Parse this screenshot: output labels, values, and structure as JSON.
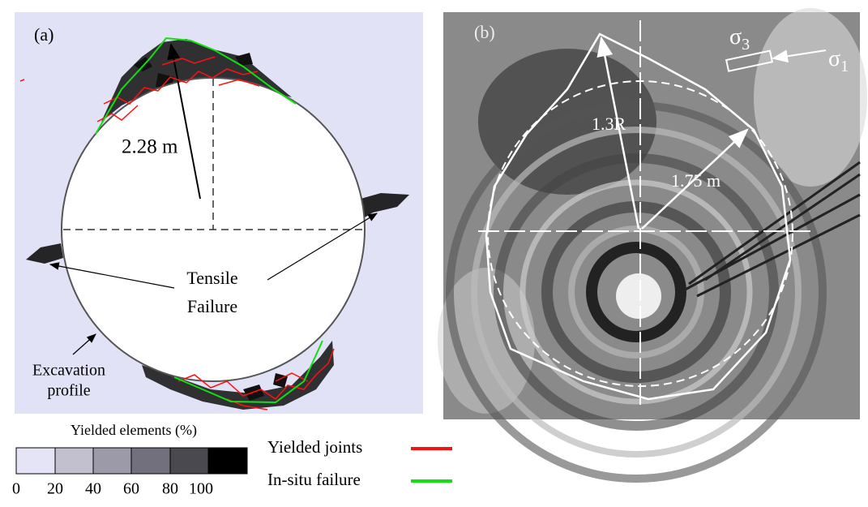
{
  "panel_a": {
    "label": "(a)",
    "radius_label": "2.28 m",
    "tensile_label": [
      "Tensile",
      "Failure"
    ],
    "excavation_label": [
      "Excavation",
      "profile"
    ]
  },
  "panel_b": {
    "label": "(b)",
    "radius_label_1": "1.3R",
    "radius_label_2": "1.75 m",
    "stress_labels": [
      {
        "symbol": "σ",
        "subscript": "3"
      },
      {
        "symbol": "σ",
        "subscript": "1"
      }
    ]
  },
  "colorbar": {
    "title": "Yielded elements  (%)",
    "ticks": [
      "0",
      "20",
      "40",
      "60",
      "80",
      "100"
    ]
  },
  "legend": [
    {
      "label": "Yielded joints",
      "color": "#ff1010"
    },
    {
      "label": "In-situ failure",
      "color": "#10e010"
    }
  ]
}
